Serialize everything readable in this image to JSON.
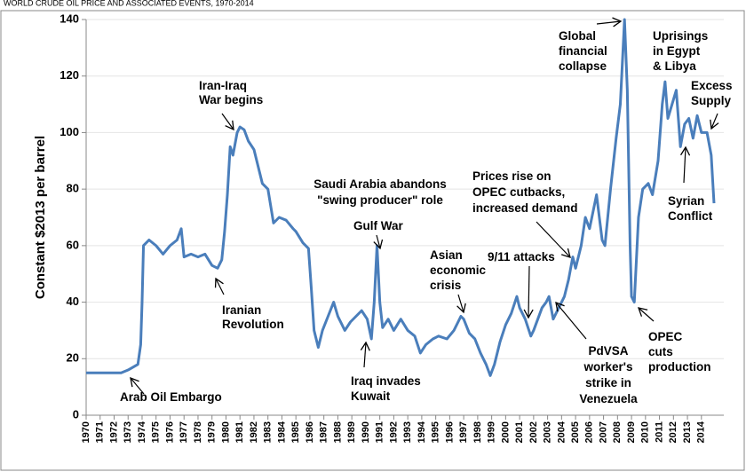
{
  "chart_data": {
    "type": "line",
    "title": "WORLD CRUDE OIL PRICE AND ASSOCIATED EVENTS, 1970-2014",
    "y_label": "Constant $2013 per barrel",
    "color": "#4a7ebb",
    "grid": true,
    "xlim": [
      1970,
      2015.6
    ],
    "ylim": [
      0,
      140
    ],
    "yticks": [
      0,
      20,
      40,
      60,
      80,
      100,
      120,
      140
    ],
    "xticks": [
      1970,
      1971,
      1972,
      1973,
      1974,
      1975,
      1976,
      1977,
      1978,
      1979,
      1980,
      1981,
      1982,
      1983,
      1984,
      1985,
      1986,
      1987,
      1988,
      1989,
      1990,
      1991,
      1992,
      1993,
      1994,
      1995,
      1996,
      1997,
      1998,
      1999,
      2000,
      2001,
      2002,
      2003,
      2004,
      2005,
      2006,
      2007,
      2008,
      2009,
      2010,
      2011,
      2012,
      2013,
      2014
    ],
    "x": [
      1970,
      1972.5,
      1973,
      1973.7,
      1973.9,
      1974,
      1974.1,
      1974.5,
      1975,
      1975.5,
      1976,
      1976.5,
      1976.8,
      1977,
      1977.5,
      1978,
      1978.5,
      1979,
      1979.4,
      1979.7,
      1979.9,
      1980.1,
      1980.3,
      1980.5,
      1980.8,
      1981,
      1981.3,
      1981.6,
      1982,
      1982.3,
      1982.6,
      1983,
      1983.4,
      1983.8,
      1984.3,
      1984.8,
      1985,
      1985.5,
      1985.9,
      1986.1,
      1986.3,
      1986.6,
      1986.9,
      1987.3,
      1987.7,
      1988,
      1988.5,
      1988.9,
      1989.3,
      1989.7,
      1990.1,
      1990.4,
      1990.6,
      1990.8,
      1991,
      1991.2,
      1991.6,
      1992,
      1992.5,
      1993,
      1993.5,
      1993.9,
      1994.3,
      1994.8,
      1995.2,
      1995.8,
      1996.3,
      1996.8,
      1997,
      1997.4,
      1997.8,
      1998.2,
      1998.6,
      1998.9,
      1999.2,
      1999.6,
      2000,
      2000.4,
      2000.8,
      2001,
      2001.4,
      2001.8,
      2002,
      2002.3,
      2002.6,
      2002.9,
      2003.1,
      2003.4,
      2003.8,
      2004.2,
      2004.5,
      2004.8,
      2005,
      2005.4,
      2005.7,
      2006,
      2006.5,
      2006.9,
      2007.1,
      2007.5,
      2007.9,
      2008.2,
      2008.5,
      2008.7,
      2008.9,
      2009,
      2009.2,
      2009.5,
      2009.8,
      2010.2,
      2010.5,
      2010.9,
      2011.2,
      2011.4,
      2011.6,
      2011.9,
      2012.2,
      2012.5,
      2012.8,
      2013.1,
      2013.4,
      2013.7,
      2014,
      2014.4,
      2014.7,
      2014.9
    ],
    "values": [
      15,
      15,
      16,
      18,
      25,
      40,
      60,
      62,
      60,
      57,
      60,
      62,
      66,
      56,
      57,
      56,
      57,
      53,
      52,
      55,
      65,
      78,
      95,
      92,
      100,
      102,
      101,
      97,
      94,
      88,
      82,
      80,
      68,
      70,
      69,
      66,
      65,
      61,
      59,
      45,
      30,
      24,
      30,
      35,
      40,
      35,
      30,
      33,
      35,
      37,
      34,
      27,
      40,
      60,
      40,
      31,
      34,
      30,
      34,
      30,
      28,
      22,
      25,
      27,
      28,
      27,
      30,
      35,
      34,
      29,
      27,
      22,
      18,
      14,
      18,
      26,
      32,
      36,
      42,
      38,
      34,
      28,
      30,
      34,
      38,
      40,
      42,
      34,
      38,
      42,
      48,
      56,
      52,
      60,
      70,
      66,
      78,
      62,
      60,
      80,
      98,
      110,
      140,
      115,
      60,
      42,
      40,
      70,
      80,
      82,
      78,
      90,
      110,
      118,
      105,
      110,
      115,
      95,
      103,
      105,
      98,
      106,
      100,
      100,
      92,
      75
    ],
    "annotations": [
      {
        "lines": [
          "Arab Oil Embargo"
        ]
      },
      {
        "lines": [
          "Iranian",
          "Revolution"
        ]
      },
      {
        "lines": [
          "Iran-Iraq",
          "War begins"
        ]
      },
      {
        "lines": [
          "Saudi Arabia abandons",
          "\"swing producer\" role"
        ]
      },
      {
        "lines": [
          "Gulf War"
        ]
      },
      {
        "lines": [
          "Iraq invades",
          "Kuwait"
        ]
      },
      {
        "lines": [
          "Asian",
          "economic",
          "crisis"
        ]
      },
      {
        "lines": [
          "9/11 attacks"
        ]
      },
      {
        "lines": [
          "Prices rise on",
          "OPEC cutbacks,",
          "increased demand"
        ]
      },
      {
        "lines": [
          "PdVSA",
          "worker's",
          "strike in",
          "Venezuela"
        ]
      },
      {
        "lines": [
          "Global",
          "financial",
          "collapse"
        ]
      },
      {
        "lines": [
          "Uprisings",
          "in Egypt",
          "& Libya"
        ]
      },
      {
        "lines": [
          "Excess",
          "Supply"
        ]
      },
      {
        "lines": [
          "Syrian",
          "Conflict"
        ]
      },
      {
        "lines": [
          "OPEC",
          "cuts",
          "production"
        ]
      }
    ]
  }
}
